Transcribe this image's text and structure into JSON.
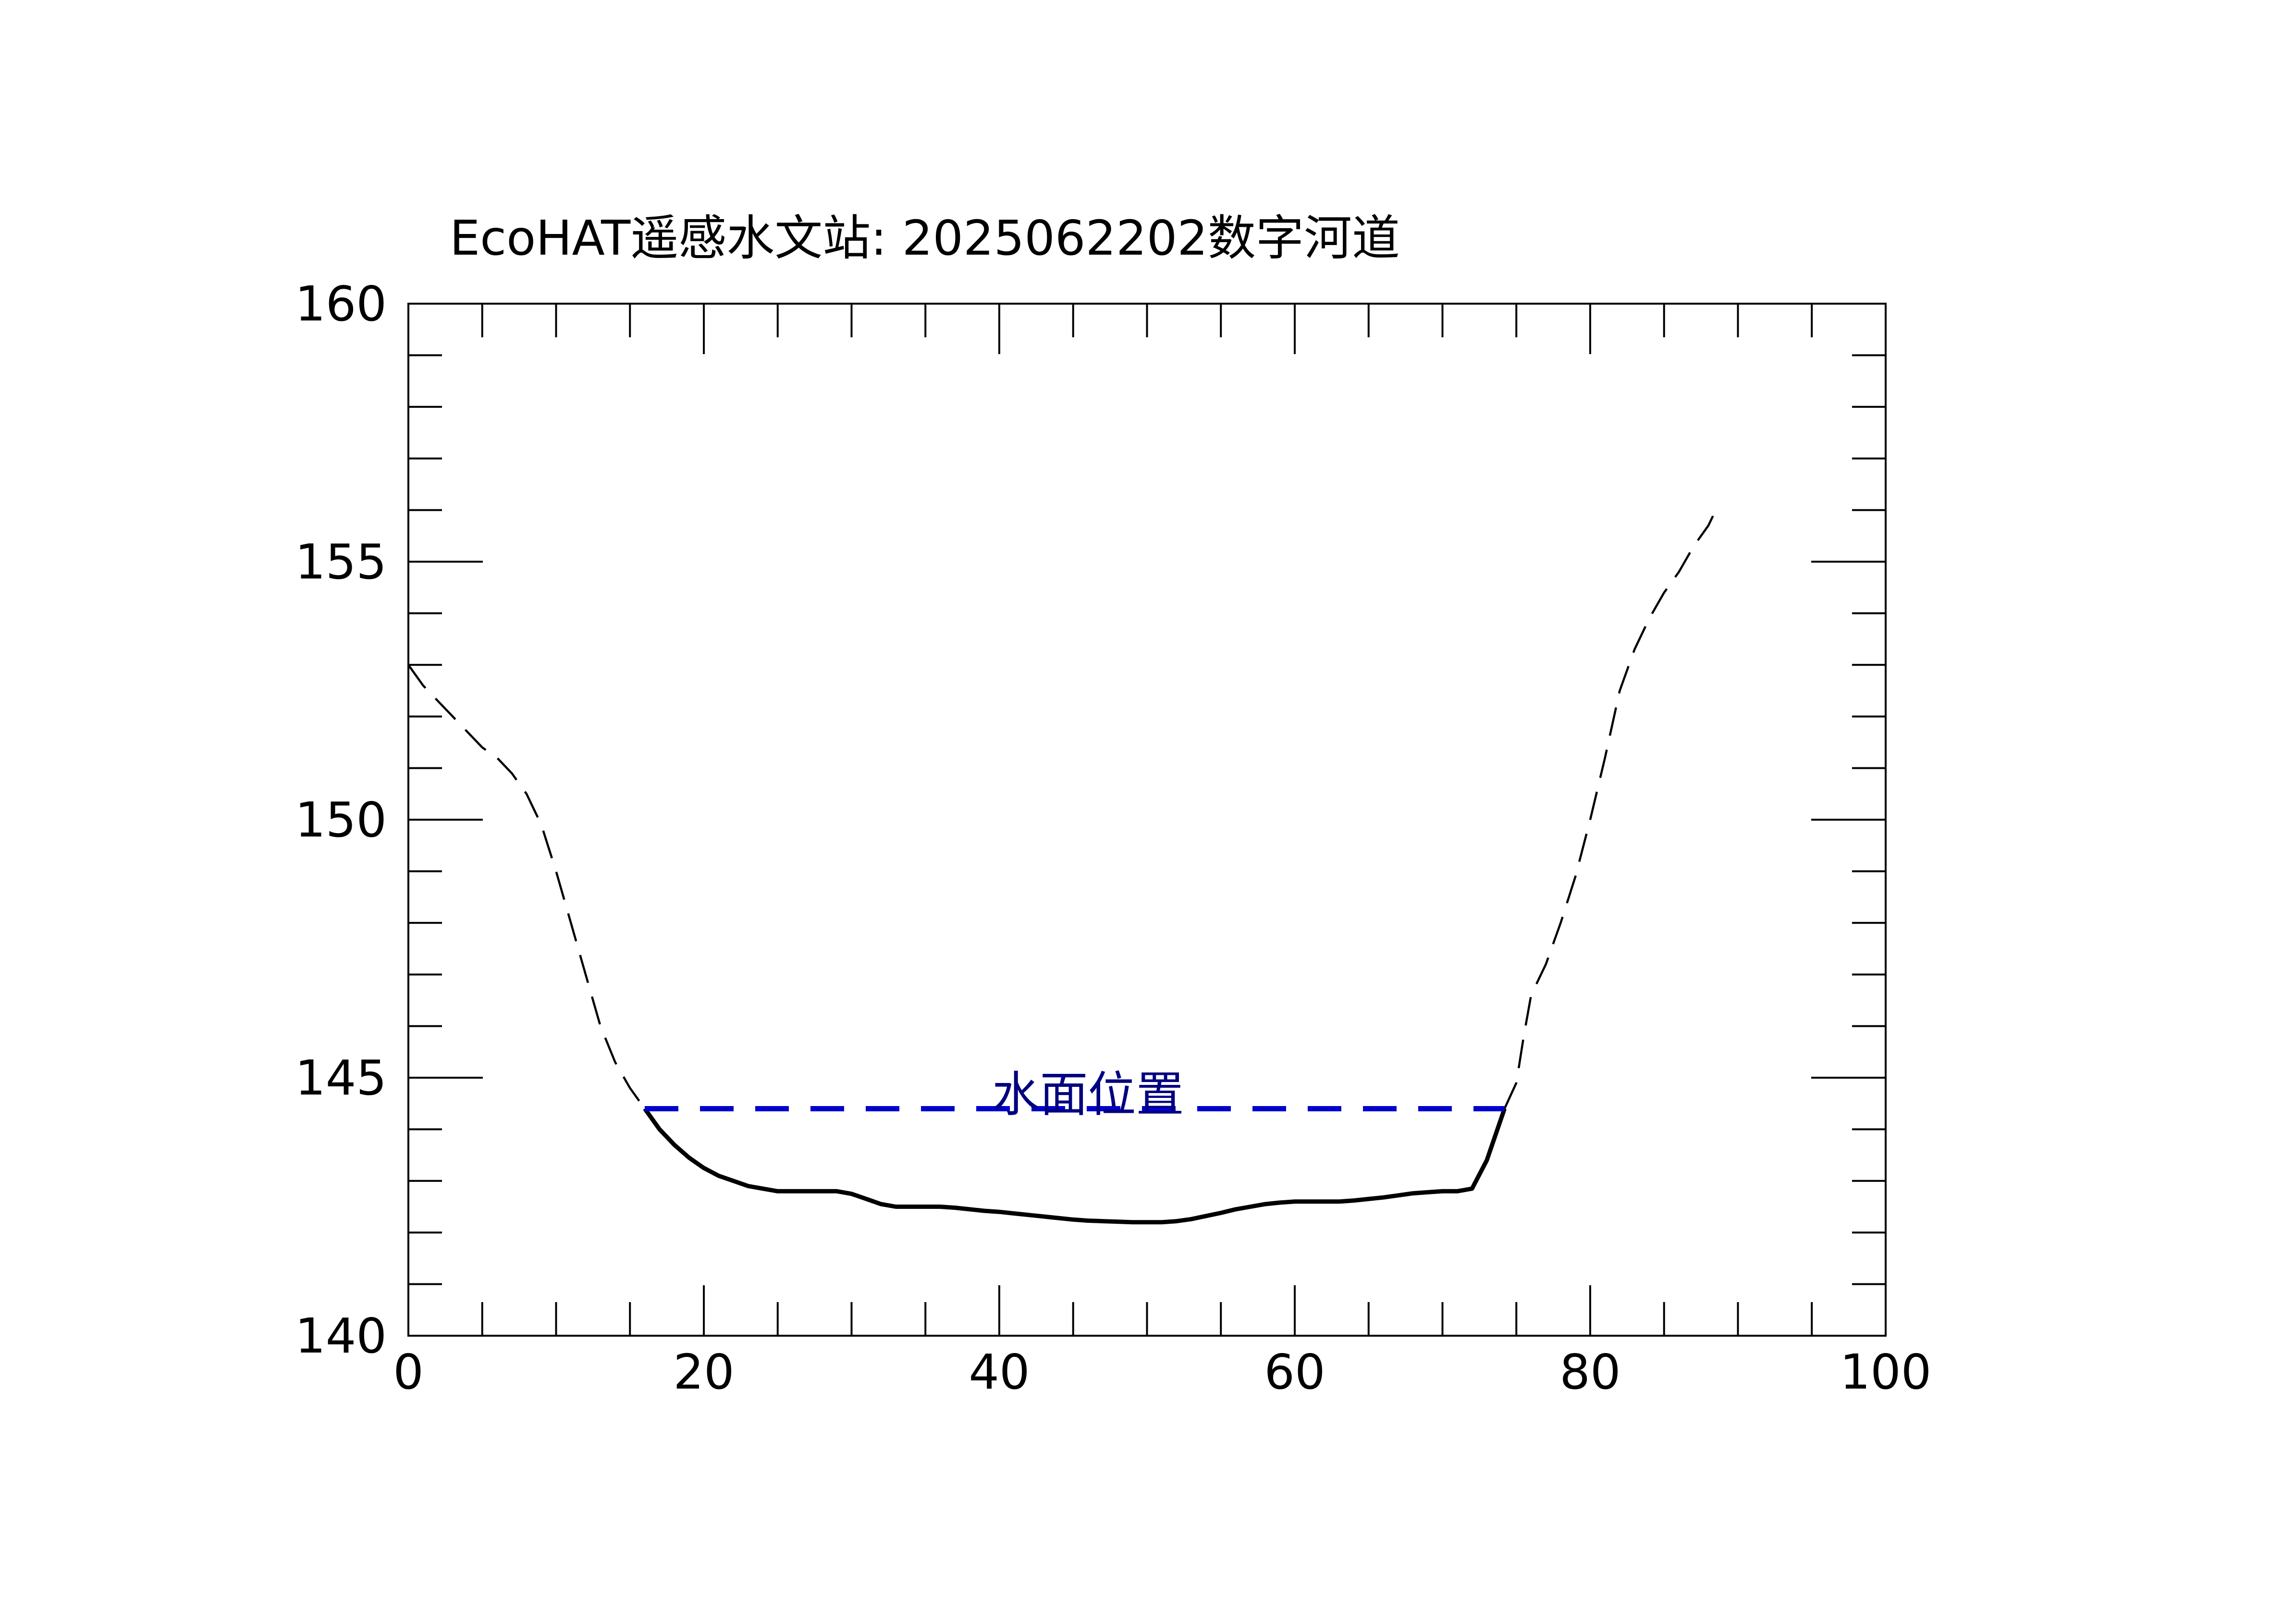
{
  "chart_data": {
    "type": "line",
    "title": "EcoHAT遥感水文站: 2025062202数字河道",
    "xlabel": "",
    "ylabel": "",
    "xlim": [
      0,
      100
    ],
    "ylim": [
      140,
      160
    ],
    "x_ticks": [
      "0",
      "20",
      "40",
      "60",
      "80",
      "100"
    ],
    "y_ticks": [
      "140",
      "145",
      "150",
      "155",
      "160"
    ],
    "x_tick_values": [
      0,
      20,
      40,
      60,
      80,
      100
    ],
    "y_tick_values": [
      140,
      145,
      150,
      155,
      160
    ],
    "x_minor_step": 5,
    "y_minor_step": 1,
    "grid": false,
    "legend": "none",
    "water_level": {
      "label": "水面位置",
      "elevation": 144.4,
      "x_start": 16,
      "x_end": 74.2,
      "color": "#0000cc",
      "label_color": "#000080"
    },
    "series": [
      {
        "style": "dashed-thin",
        "color": "#000000",
        "x": [
          0,
          1,
          2,
          3,
          4,
          5,
          6,
          7,
          8,
          9,
          10,
          11,
          12,
          13,
          14,
          15,
          16
        ],
        "y": [
          153.0,
          152.6,
          152.3,
          152.0,
          151.7,
          151.4,
          151.2,
          150.9,
          150.5,
          149.9,
          149.0,
          148.0,
          147.0,
          146.0,
          145.3,
          144.8,
          144.4
        ]
      },
      {
        "style": "solid-bold",
        "color": "#000000",
        "x": [
          16,
          17,
          18,
          19,
          20,
          21,
          22,
          23,
          24,
          25,
          26,
          27,
          28,
          29,
          30,
          31,
          32,
          33,
          34,
          35,
          36,
          37,
          38,
          39,
          40,
          41,
          42,
          43,
          44,
          45,
          46,
          47,
          48,
          49,
          50,
          51,
          52,
          53,
          54,
          55,
          56,
          57,
          58,
          59,
          60,
          61,
          62,
          63,
          64,
          65,
          66,
          67,
          68,
          69,
          70,
          71,
          72,
          73,
          74.2
        ],
        "y": [
          144.4,
          144.0,
          143.7,
          143.45,
          143.25,
          143.1,
          143.0,
          142.9,
          142.85,
          142.8,
          142.8,
          142.8,
          142.8,
          142.8,
          142.75,
          142.65,
          142.55,
          142.5,
          142.5,
          142.5,
          142.5,
          142.48,
          142.45,
          142.42,
          142.4,
          142.37,
          142.34,
          142.31,
          142.28,
          142.25,
          142.23,
          142.22,
          142.21,
          142.2,
          142.2,
          142.2,
          142.22,
          142.26,
          142.32,
          142.38,
          142.45,
          142.5,
          142.55,
          142.58,
          142.6,
          142.6,
          142.6,
          142.6,
          142.62,
          142.65,
          142.68,
          142.72,
          142.76,
          142.78,
          142.8,
          142.8,
          142.85,
          143.4,
          144.4
        ]
      },
      {
        "style": "dashed-thin",
        "color": "#000000",
        "x": [
          74.2,
          75,
          75.5,
          76,
          76.5,
          77,
          77.5,
          78,
          79,
          80,
          81,
          82,
          83,
          84,
          85,
          86,
          87,
          88,
          88.5
        ],
        "y": [
          144.4,
          144.9,
          145.8,
          146.6,
          146.9,
          147.2,
          147.6,
          148.0,
          148.9,
          150.0,
          151.2,
          152.5,
          153.3,
          153.9,
          154.4,
          154.8,
          155.3,
          155.7,
          156.0
        ]
      }
    ]
  }
}
